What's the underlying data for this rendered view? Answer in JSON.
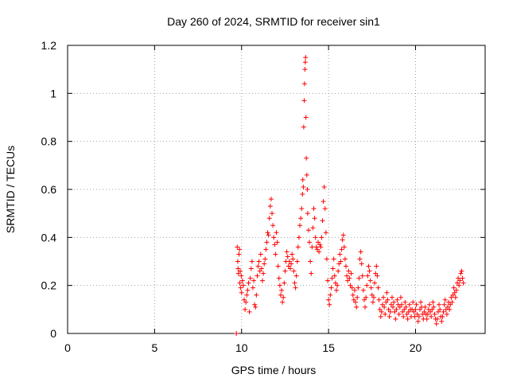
{
  "chart_data": {
    "type": "scatter",
    "title": "Day 260 of 2024, SRMTID for receiver sin1",
    "xlabel": "GPS time / hours",
    "ylabel": "SRMTID / TECUs",
    "xlim": [
      0,
      24
    ],
    "ylim": [
      0,
      1.2
    ],
    "grid": true,
    "x_ticks": [
      0,
      5,
      10,
      15,
      20
    ],
    "x_tick_labels": [
      "0",
      "5",
      "10",
      "15",
      "20"
    ],
    "y_ticks": [
      0,
      0.2,
      0.4,
      0.6,
      0.8,
      1.0,
      1.2
    ],
    "y_tick_labels": [
      "0",
      "0.2",
      "0.4",
      "0.6",
      "0.8",
      "1",
      "1.2"
    ],
    "marker": "+",
    "color": "#ff0000",
    "series": [
      {
        "name": "SRMTID",
        "points": [
          [
            9.7,
            0.0
          ],
          [
            9.75,
            0.36
          ],
          [
            9.78,
            0.3
          ],
          [
            9.8,
            0.27
          ],
          [
            9.82,
            0.25
          ],
          [
            9.85,
            0.33
          ],
          [
            9.88,
            0.35
          ],
          [
            9.9,
            0.21
          ],
          [
            9.92,
            0.26
          ],
          [
            9.95,
            0.19
          ],
          [
            9.98,
            0.24
          ],
          [
            10.0,
            0.17
          ],
          [
            10.05,
            0.22
          ],
          [
            10.1,
            0.2
          ],
          [
            10.15,
            0.14
          ],
          [
            10.2,
            0.1
          ],
          [
            10.25,
            0.13
          ],
          [
            10.3,
            0.16
          ],
          [
            10.35,
            0.18
          ],
          [
            10.4,
            0.21
          ],
          [
            10.45,
            0.09
          ],
          [
            10.5,
            0.23
          ],
          [
            10.55,
            0.27
          ],
          [
            10.6,
            0.3
          ],
          [
            10.65,
            0.19
          ],
          [
            10.7,
            0.22
          ],
          [
            10.75,
            0.12
          ],
          [
            10.8,
            0.11
          ],
          [
            10.85,
            0.16
          ],
          [
            10.9,
            0.24
          ],
          [
            10.95,
            0.28
          ],
          [
            11.0,
            0.3
          ],
          [
            11.05,
            0.26
          ],
          [
            11.1,
            0.33
          ],
          [
            11.15,
            0.27
          ],
          [
            11.2,
            0.22
          ],
          [
            11.25,
            0.25
          ],
          [
            11.3,
            0.29
          ],
          [
            11.35,
            0.31
          ],
          [
            11.4,
            0.35
          ],
          [
            11.45,
            0.38
          ],
          [
            11.5,
            0.42
          ],
          [
            11.55,
            0.41
          ],
          [
            11.6,
            0.48
          ],
          [
            11.65,
            0.53
          ],
          [
            11.7,
            0.56
          ],
          [
            11.75,
            0.5
          ],
          [
            11.8,
            0.45
          ],
          [
            11.85,
            0.4
          ],
          [
            11.9,
            0.37
          ],
          [
            11.95,
            0.33
          ],
          [
            12.0,
            0.42
          ],
          [
            12.05,
            0.38
          ],
          [
            12.1,
            0.28
          ],
          [
            12.15,
            0.23
          ],
          [
            12.2,
            0.2
          ],
          [
            12.25,
            0.16
          ],
          [
            12.3,
            0.18
          ],
          [
            12.35,
            0.13
          ],
          [
            12.4,
            0.15
          ],
          [
            12.45,
            0.21
          ],
          [
            12.5,
            0.26
          ],
          [
            12.55,
            0.3
          ],
          [
            12.6,
            0.34
          ],
          [
            12.65,
            0.32
          ],
          [
            12.7,
            0.28
          ],
          [
            12.75,
            0.3
          ],
          [
            12.8,
            0.27
          ],
          [
            12.85,
            0.29
          ],
          [
            12.9,
            0.33
          ],
          [
            12.95,
            0.31
          ],
          [
            13.0,
            0.26
          ],
          [
            13.05,
            0.21
          ],
          [
            13.1,
            0.19
          ],
          [
            13.15,
            0.24
          ],
          [
            13.2,
            0.3
          ],
          [
            13.25,
            0.36
          ],
          [
            13.3,
            0.4
          ],
          [
            13.35,
            0.45
          ],
          [
            13.4,
            0.48
          ],
          [
            13.45,
            0.52
          ],
          [
            13.5,
            0.58
          ],
          [
            13.52,
            0.64
          ],
          [
            13.55,
            0.61
          ],
          [
            13.57,
            0.86
          ],
          [
            13.6,
            0.97
          ],
          [
            13.62,
            1.04
          ],
          [
            13.64,
            1.1
          ],
          [
            13.66,
            1.13
          ],
          [
            13.68,
            1.15
          ],
          [
            13.7,
            0.9
          ],
          [
            13.72,
            0.73
          ],
          [
            13.75,
            0.66
          ],
          [
            13.78,
            0.6
          ],
          [
            13.8,
            0.5
          ],
          [
            13.85,
            0.43
          ],
          [
            13.9,
            0.38
          ],
          [
            13.95,
            0.3
          ],
          [
            14.0,
            0.25
          ],
          [
            14.05,
            0.36
          ],
          [
            14.1,
            0.44
          ],
          [
            14.15,
            0.52
          ],
          [
            14.2,
            0.48
          ],
          [
            14.25,
            0.4
          ],
          [
            14.3,
            0.36
          ],
          [
            14.35,
            0.35
          ],
          [
            14.4,
            0.38
          ],
          [
            14.45,
            0.34
          ],
          [
            14.5,
            0.37
          ],
          [
            14.55,
            0.36
          ],
          [
            14.6,
            0.4
          ],
          [
            14.65,
            0.47
          ],
          [
            14.7,
            0.55
          ],
          [
            14.75,
            0.61
          ],
          [
            14.8,
            0.52
          ],
          [
            14.85,
            0.42
          ],
          [
            14.9,
            0.31
          ],
          [
            14.95,
            0.22
          ],
          [
            15.0,
            0.14
          ],
          [
            15.05,
            0.12
          ],
          [
            15.1,
            0.16
          ],
          [
            15.15,
            0.19
          ],
          [
            15.2,
            0.23
          ],
          [
            15.25,
            0.27
          ],
          [
            15.3,
            0.31
          ],
          [
            15.35,
            0.24
          ],
          [
            15.4,
            0.21
          ],
          [
            15.45,
            0.18
          ],
          [
            15.5,
            0.2
          ],
          [
            15.55,
            0.26
          ],
          [
            15.6,
            0.29
          ],
          [
            15.65,
            0.33
          ],
          [
            15.7,
            0.3
          ],
          [
            15.75,
            0.35
          ],
          [
            15.8,
            0.39
          ],
          [
            15.85,
            0.41
          ],
          [
            15.9,
            0.36
          ],
          [
            15.95,
            0.31
          ],
          [
            16.0,
            0.28
          ],
          [
            16.05,
            0.24
          ],
          [
            16.1,
            0.22
          ],
          [
            16.15,
            0.26
          ],
          [
            16.2,
            0.23
          ],
          [
            16.25,
            0.2
          ],
          [
            16.3,
            0.25
          ],
          [
            16.35,
            0.19
          ],
          [
            16.4,
            0.16
          ],
          [
            16.45,
            0.14
          ],
          [
            16.5,
            0.18
          ],
          [
            16.55,
            0.13
          ],
          [
            16.6,
            0.11
          ],
          [
            16.65,
            0.15
          ],
          [
            16.7,
            0.19
          ],
          [
            16.75,
            0.23
          ],
          [
            16.8,
            0.31
          ],
          [
            16.85,
            0.34
          ],
          [
            16.9,
            0.29
          ],
          [
            16.95,
            0.24
          ],
          [
            17.0,
            0.18
          ],
          [
            17.05,
            0.14
          ],
          [
            17.1,
            0.11
          ],
          [
            17.15,
            0.15
          ],
          [
            17.2,
            0.2
          ],
          [
            17.25,
            0.24
          ],
          [
            17.3,
            0.28
          ],
          [
            17.35,
            0.26
          ],
          [
            17.4,
            0.22
          ],
          [
            17.45,
            0.19
          ],
          [
            17.5,
            0.16
          ],
          [
            17.55,
            0.13
          ],
          [
            17.6,
            0.15
          ],
          [
            17.65,
            0.21
          ],
          [
            17.7,
            0.25
          ],
          [
            17.75,
            0.28
          ],
          [
            17.8,
            0.24
          ],
          [
            17.85,
            0.19
          ],
          [
            17.9,
            0.14
          ],
          [
            17.95,
            0.1
          ],
          [
            18.0,
            0.07
          ],
          [
            18.05,
            0.09
          ],
          [
            18.1,
            0.12
          ],
          [
            18.15,
            0.15
          ],
          [
            18.2,
            0.11
          ],
          [
            18.25,
            0.08
          ],
          [
            18.3,
            0.13
          ],
          [
            18.35,
            0.17
          ],
          [
            18.4,
            0.14
          ],
          [
            18.45,
            0.1
          ],
          [
            18.5,
            0.07
          ],
          [
            18.55,
            0.09
          ],
          [
            18.6,
            0.12
          ],
          [
            18.65,
            0.15
          ],
          [
            18.7,
            0.11
          ],
          [
            18.75,
            0.13
          ],
          [
            18.8,
            0.09
          ],
          [
            18.85,
            0.06
          ],
          [
            18.9,
            0.1
          ],
          [
            18.95,
            0.14
          ],
          [
            19.0,
            0.12
          ],
          [
            19.05,
            0.08
          ],
          [
            19.1,
            0.11
          ],
          [
            19.15,
            0.15
          ],
          [
            19.2,
            0.12
          ],
          [
            19.25,
            0.09
          ],
          [
            19.3,
            0.07
          ],
          [
            19.35,
            0.1
          ],
          [
            19.4,
            0.13
          ],
          [
            19.45,
            0.11
          ],
          [
            19.5,
            0.08
          ],
          [
            19.55,
            0.06
          ],
          [
            19.6,
            0.09
          ],
          [
            19.65,
            0.12
          ],
          [
            19.7,
            0.1
          ],
          [
            19.75,
            0.07
          ],
          [
            19.8,
            0.1
          ],
          [
            19.85,
            0.13
          ],
          [
            19.9,
            0.09
          ],
          [
            19.95,
            0.07
          ],
          [
            20.0,
            0.1
          ],
          [
            20.05,
            0.12
          ],
          [
            20.1,
            0.08
          ],
          [
            20.15,
            0.05
          ],
          [
            20.2,
            0.07
          ],
          [
            20.25,
            0.1
          ],
          [
            20.3,
            0.13
          ],
          [
            20.35,
            0.11
          ],
          [
            20.4,
            0.08
          ],
          [
            20.45,
            0.06
          ],
          [
            20.5,
            0.09
          ],
          [
            20.55,
            0.11
          ],
          [
            20.6,
            0.08
          ],
          [
            20.65,
            0.06
          ],
          [
            20.7,
            0.08
          ],
          [
            20.75,
            0.1
          ],
          [
            20.8,
            0.12
          ],
          [
            20.85,
            0.09
          ],
          [
            20.9,
            0.07
          ],
          [
            20.95,
            0.1
          ],
          [
            21.0,
            0.13
          ],
          [
            21.05,
            0.11
          ],
          [
            21.1,
            0.08
          ],
          [
            21.15,
            0.06
          ],
          [
            21.2,
            0.04
          ],
          [
            21.25,
            0.06
          ],
          [
            21.3,
            0.09
          ],
          [
            21.35,
            0.12
          ],
          [
            21.4,
            0.1
          ],
          [
            21.45,
            0.07
          ],
          [
            21.5,
            0.05
          ],
          [
            21.55,
            0.07
          ],
          [
            21.6,
            0.09
          ],
          [
            21.65,
            0.12
          ],
          [
            21.7,
            0.14
          ],
          [
            21.75,
            0.1
          ],
          [
            21.8,
            0.08
          ],
          [
            21.85,
            0.11
          ],
          [
            21.9,
            0.13
          ],
          [
            21.95,
            0.1
          ],
          [
            22.0,
            0.12
          ],
          [
            22.05,
            0.15
          ],
          [
            22.1,
            0.13
          ],
          [
            22.15,
            0.16
          ],
          [
            22.2,
            0.19
          ],
          [
            22.25,
            0.17
          ],
          [
            22.3,
            0.15
          ],
          [
            22.35,
            0.18
          ],
          [
            22.4,
            0.21
          ],
          [
            22.45,
            0.23
          ],
          [
            22.5,
            0.2
          ],
          [
            22.55,
            0.22
          ],
          [
            22.6,
            0.25
          ],
          [
            22.65,
            0.26
          ],
          [
            22.7,
            0.23
          ],
          [
            22.75,
            0.21
          ]
        ]
      }
    ]
  }
}
